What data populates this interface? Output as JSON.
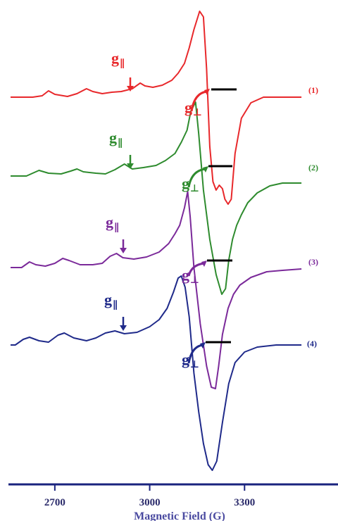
{
  "chart_data": {
    "type": "line",
    "xlabel": "Magnetic Field (G)",
    "xlim": [
      2560,
      3600
    ],
    "xticks": [
      2700,
      3000,
      3300
    ],
    "tick_labels": [
      "2700",
      "3000",
      "3300"
    ],
    "colors": {
      "axis": "#1a237e",
      "marker": "#000000"
    },
    "series": [
      {
        "name": "(1)",
        "color": "#e8282b",
        "g_par": "g",
        "g_par_sub": "∥",
        "g_perp": "g",
        "g_perp_sub": "⊥",
        "points": [
          [
            2560,
            0
          ],
          [
            2630,
            0
          ],
          [
            2660,
            2
          ],
          [
            2680,
            9
          ],
          [
            2700,
            4
          ],
          [
            2740,
            1
          ],
          [
            2770,
            5
          ],
          [
            2800,
            12
          ],
          [
            2820,
            8
          ],
          [
            2850,
            5
          ],
          [
            2880,
            7
          ],
          [
            2910,
            8
          ],
          [
            2945,
            12
          ],
          [
            2970,
            20
          ],
          [
            2985,
            16
          ],
          [
            3010,
            14
          ],
          [
            3040,
            17
          ],
          [
            3070,
            24
          ],
          [
            3090,
            34
          ],
          [
            3110,
            48
          ],
          [
            3125,
            70
          ],
          [
            3140,
            96
          ],
          [
            3158,
            122
          ],
          [
            3170,
            114
          ],
          [
            3180,
            40
          ],
          [
            3190,
            -70
          ],
          [
            3200,
            -120
          ],
          [
            3210,
            -132
          ],
          [
            3220,
            -125
          ],
          [
            3230,
            -130
          ],
          [
            3238,
            -145
          ],
          [
            3248,
            -152
          ],
          [
            3258,
            -145
          ],
          [
            3270,
            -80
          ],
          [
            3290,
            -30
          ],
          [
            3320,
            -8
          ],
          [
            3360,
            0
          ],
          [
            3480,
            0
          ]
        ]
      },
      {
        "name": "(2)",
        "color": "#2e8b2e",
        "g_par": "g",
        "g_par_sub": "∥",
        "g_perp": "g",
        "g_perp_sub": "⊥",
        "points": [
          [
            2560,
            0
          ],
          [
            2610,
            0
          ],
          [
            2630,
            4
          ],
          [
            2650,
            8
          ],
          [
            2680,
            4
          ],
          [
            2720,
            3
          ],
          [
            2750,
            7
          ],
          [
            2770,
            10
          ],
          [
            2790,
            6
          ],
          [
            2830,
            4
          ],
          [
            2860,
            3
          ],
          [
            2890,
            9
          ],
          [
            2920,
            17
          ],
          [
            2945,
            10
          ],
          [
            2980,
            12
          ],
          [
            3020,
            15
          ],
          [
            3050,
            22
          ],
          [
            3080,
            32
          ],
          [
            3100,
            48
          ],
          [
            3118,
            65
          ],
          [
            3130,
            92
          ],
          [
            3145,
            105
          ],
          [
            3155,
            60
          ],
          [
            3170,
            -20
          ],
          [
            3190,
            -90
          ],
          [
            3210,
            -140
          ],
          [
            3228,
            -168
          ],
          [
            3240,
            -160
          ],
          [
            3250,
            -120
          ],
          [
            3262,
            -90
          ],
          [
            3275,
            -70
          ],
          [
            3290,
            -55
          ],
          [
            3310,
            -38
          ],
          [
            3340,
            -24
          ],
          [
            3380,
            -14
          ],
          [
            3420,
            -10
          ],
          [
            3480,
            -10
          ]
        ]
      },
      {
        "name": "(3)",
        "color": "#7b2a9a",
        "g_par": "g",
        "g_par_sub": "∥",
        "g_perp": "g",
        "g_perp_sub": "⊥",
        "points": [
          [
            2560,
            0
          ],
          [
            2595,
            0
          ],
          [
            2620,
            8
          ],
          [
            2640,
            4
          ],
          [
            2670,
            2
          ],
          [
            2700,
            6
          ],
          [
            2725,
            13
          ],
          [
            2745,
            10
          ],
          [
            2780,
            4
          ],
          [
            2820,
            4
          ],
          [
            2850,
            6
          ],
          [
            2875,
            16
          ],
          [
            2895,
            20
          ],
          [
            2915,
            14
          ],
          [
            2950,
            12
          ],
          [
            2990,
            15
          ],
          [
            3030,
            22
          ],
          [
            3060,
            34
          ],
          [
            3080,
            48
          ],
          [
            3095,
            60
          ],
          [
            3110,
            85
          ],
          [
            3120,
            108
          ],
          [
            3128,
            72
          ],
          [
            3140,
            0
          ],
          [
            3160,
            -80
          ],
          [
            3180,
            -140
          ],
          [
            3195,
            -170
          ],
          [
            3208,
            -172
          ],
          [
            3218,
            -140
          ],
          [
            3230,
            -95
          ],
          [
            3248,
            -58
          ],
          [
            3265,
            -38
          ],
          [
            3285,
            -25
          ],
          [
            3320,
            -14
          ],
          [
            3370,
            -6
          ],
          [
            3420,
            -4
          ],
          [
            3480,
            -2
          ]
        ]
      },
      {
        "name": "(4)",
        "color": "#1f2a8a",
        "g_par": "g",
        "g_par_sub": "∥",
        "g_perp": "g",
        "g_perp_sub": "⊥",
        "points": [
          [
            2560,
            0
          ],
          [
            2575,
            0
          ],
          [
            2600,
            8
          ],
          [
            2620,
            11
          ],
          [
            2650,
            6
          ],
          [
            2680,
            4
          ],
          [
            2710,
            14
          ],
          [
            2730,
            17
          ],
          [
            2760,
            10
          ],
          [
            2800,
            6
          ],
          [
            2830,
            10
          ],
          [
            2860,
            17
          ],
          [
            2890,
            20
          ],
          [
            2920,
            16
          ],
          [
            2960,
            18
          ],
          [
            3000,
            26
          ],
          [
            3030,
            36
          ],
          [
            3055,
            52
          ],
          [
            3075,
            75
          ],
          [
            3090,
            95
          ],
          [
            3100,
            98
          ],
          [
            3112,
            82
          ],
          [
            3125,
            40
          ],
          [
            3140,
            -40
          ],
          [
            3155,
            -95
          ],
          [
            3170,
            -140
          ],
          [
            3185,
            -170
          ],
          [
            3198,
            -178
          ],
          [
            3212,
            -165
          ],
          [
            3230,
            -110
          ],
          [
            3250,
            -55
          ],
          [
            3270,
            -25
          ],
          [
            3300,
            -10
          ],
          [
            3340,
            -3
          ],
          [
            3400,
            0
          ],
          [
            3480,
            0
          ]
        ]
      }
    ]
  }
}
